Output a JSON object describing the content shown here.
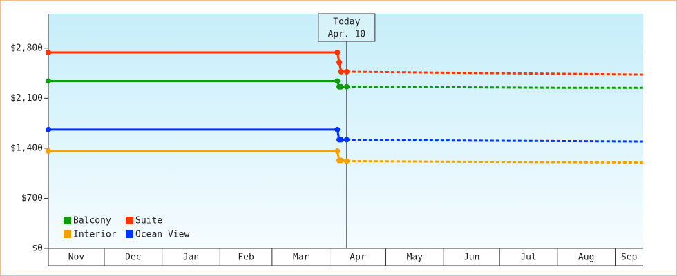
{
  "chart_data": {
    "type": "line",
    "x": [
      0,
      155,
      156,
      157,
      160,
      200,
      240,
      280,
      319
    ],
    "xlim": [
      0,
      319
    ],
    "xticks": [
      {
        "value": 0,
        "label": "Nov"
      },
      {
        "value": 30,
        "label": "Dec"
      },
      {
        "value": 61,
        "label": "Jan"
      },
      {
        "value": 92,
        "label": "Feb"
      },
      {
        "value": 120,
        "label": "Mar"
      },
      {
        "value": 151,
        "label": "Apr"
      },
      {
        "value": 181,
        "label": "May"
      },
      {
        "value": 212,
        "label": "Jun"
      },
      {
        "value": 242,
        "label": "Jul"
      },
      {
        "value": 273,
        "label": "Aug"
      },
      {
        "value": 304,
        "label": "Sep"
      }
    ],
    "ylim": [
      0,
      3280
    ],
    "yticks": [
      {
        "value": 0,
        "label": "$0"
      },
      {
        "value": 700,
        "label": "$700"
      },
      {
        "value": 1400,
        "label": "$1,400"
      },
      {
        "value": 2100,
        "label": "$2,100"
      },
      {
        "value": 2800,
        "label": "$2,800"
      }
    ],
    "today": {
      "x": 160,
      "label": "Today",
      "date": "Apr. 10"
    },
    "series": [
      {
        "name": "Balcony",
        "color": "#0a9a0a",
        "values": [
          2340,
          2340,
          2260,
          2260,
          2260,
          2255,
          2250,
          2245,
          2245
        ]
      },
      {
        "name": "Suite",
        "color": "#ff3300",
        "values": [
          2740,
          2740,
          2600,
          2470,
          2470,
          2460,
          2450,
          2440,
          2430
        ]
      },
      {
        "name": "Interior",
        "color": "#f5a000",
        "values": [
          1360,
          1360,
          1230,
          1230,
          1220,
          1215,
          1210,
          1205,
          1200
        ]
      },
      {
        "name": "Ocean View",
        "color": "#0033ff",
        "values": [
          1660,
          1660,
          1520,
          1520,
          1520,
          1510,
          1505,
          1500,
          1495
        ]
      }
    ]
  }
}
